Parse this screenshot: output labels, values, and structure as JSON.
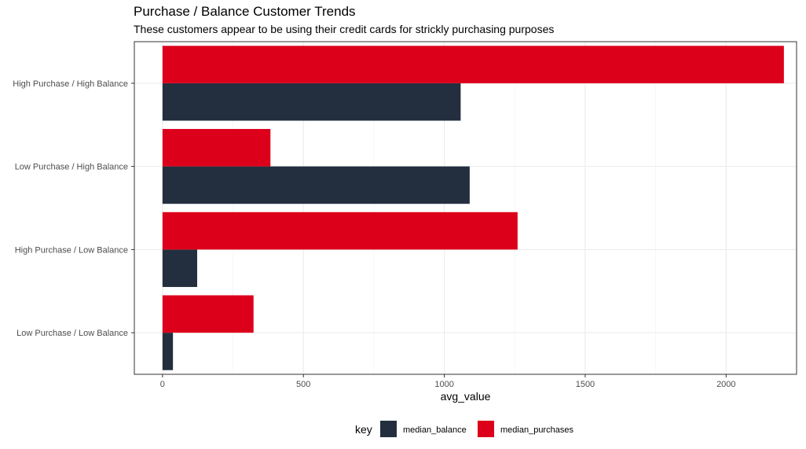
{
  "chart_data": {
    "type": "bar",
    "orientation": "horizontal",
    "title": "Purchase / Balance Customer Trends",
    "subtitle": "These customers appear to be using their credit cards for strickly purchasing purposes",
    "xlabel": "avg_value",
    "ylabel": "",
    "xlim": [
      -100,
      2250
    ],
    "x_ticks": [
      0,
      500,
      1000,
      1500,
      2000
    ],
    "categories": [
      "High Purchase / High Balance",
      "Low Purchase / High Balance",
      "High Purchase / Low Balance",
      "Low Purchase / Low Balance"
    ],
    "series": [
      {
        "name": "median_balance",
        "color": "#232f3e",
        "values": [
          1058,
          1090,
          123,
          37
        ]
      },
      {
        "name": "median_purchases",
        "color": "#dc001b",
        "values": [
          2205,
          383,
          1260,
          323
        ]
      }
    ],
    "grid": true,
    "legend": {
      "title": "key",
      "placement": "bottom"
    }
  }
}
